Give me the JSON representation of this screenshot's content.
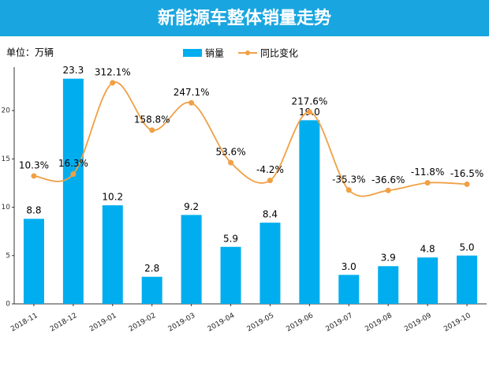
{
  "chart_data": {
    "type": "bar-line",
    "title": "新能源车整体销量走势",
    "unit_label": "单位：万辆",
    "categories": [
      "2018-11",
      "2018-12",
      "2019-01",
      "2019-02",
      "2019-03",
      "2019-04",
      "2019-05",
      "2019-06",
      "2019-07",
      "2019-08",
      "2019-09",
      "2019-10"
    ],
    "series": [
      {
        "name": "销量",
        "type": "bar",
        "color": "#00aeef",
        "values": [
          8.8,
          23.3,
          10.2,
          2.8,
          9.2,
          5.9,
          8.4,
          19.0,
          3.0,
          3.9,
          4.8,
          5.0
        ],
        "value_labels": [
          "8.8",
          "23.3",
          "10.2",
          "2.8",
          "9.2",
          "5.9",
          "8.4",
          "19.0",
          "3.0",
          "3.9",
          "4.8",
          "5.0"
        ]
      },
      {
        "name": "同比变化",
        "type": "line",
        "axis": "y2",
        "smooth": true,
        "color": "#f0a045",
        "values": [
          10.3,
          16.3,
          312.1,
          158.8,
          247.1,
          53.6,
          -4.2,
          217.6,
          -35.3,
          -36.6,
          -11.8,
          -16.5
        ],
        "value_labels": [
          "10.3%",
          "16.3%",
          "312.1%",
          "158.8%",
          "247.1%",
          "53.6%",
          "-4.2%",
          "217.6%",
          "-35.3%",
          "-36.6%",
          "-11.8%",
          "-16.5%"
        ]
      }
    ],
    "ylim": [
      0,
      24.5
    ],
    "yticks": [
      0,
      5,
      10,
      15,
      20
    ],
    "y2lim": [
      -404,
      363
    ],
    "grid": false,
    "legend": "top"
  }
}
